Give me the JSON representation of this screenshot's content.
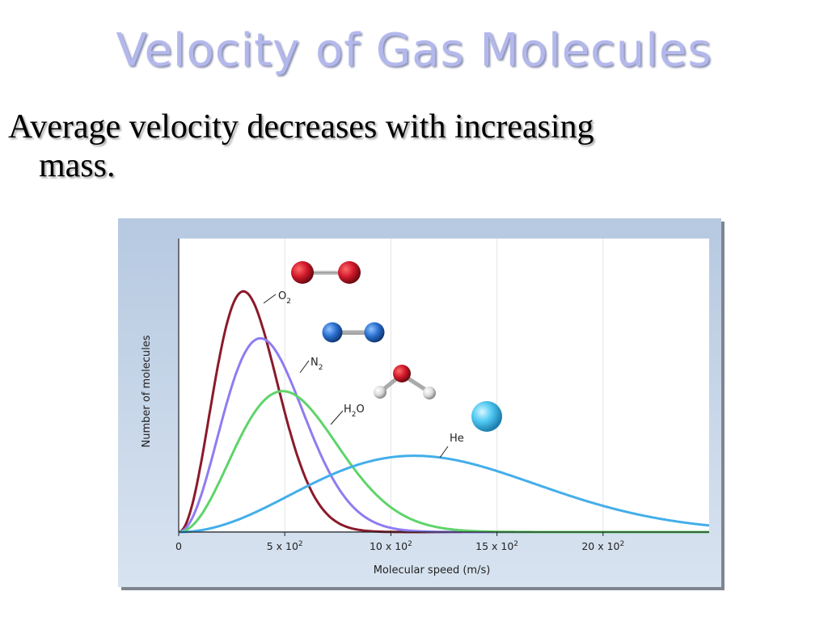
{
  "slide": {
    "title": "Velocity of Gas Molecules",
    "bullet_line1": "Average velocity decreases with increasing",
    "bullet_line2": "mass."
  },
  "chart_data": {
    "type": "line",
    "title": "",
    "xlabel": "Molecular speed (m/s)",
    "ylabel": "Number of molecules",
    "xlim": [
      0,
      2500
    ],
    "ylim": [
      0,
      1
    ],
    "x_ticks": [
      {
        "value": 0,
        "mantissa": "0",
        "exponent": ""
      },
      {
        "value": 500,
        "mantissa": "5 x 10",
        "exponent": "2"
      },
      {
        "value": 1000,
        "mantissa": "10 x 10",
        "exponent": "2"
      },
      {
        "value": 1500,
        "mantissa": "15 x 10",
        "exponent": "2"
      },
      {
        "value": 2000,
        "mantissa": "20 x 10",
        "exponent": "2"
      }
    ],
    "grid": "vertical",
    "colors": {
      "O2": "#8b1a2b",
      "N2": "#8f7cf0",
      "H2O": "#5ed46a",
      "He": "#43aeea"
    },
    "series": [
      {
        "name": "O2",
        "label_main": "O",
        "label_sub": "2",
        "peak_x": 305,
        "peak_y": 0.82
      },
      {
        "name": "N2",
        "label_main": "N",
        "label_sub": "2",
        "peak_x": 385,
        "peak_y": 0.66
      },
      {
        "name": "H2O",
        "label_main": "H",
        "label_sub": "2",
        "label_tail": "O",
        "peak_x": 490,
        "peak_y": 0.48
      },
      {
        "name": "He",
        "label_main": "He",
        "label_sub": "",
        "peak_x": 1110,
        "peak_y": 0.26
      }
    ],
    "molecule_icons": [
      "o2-molecule-icon",
      "n2-molecule-icon",
      "h2o-molecule-icon",
      "he-atom-icon"
    ]
  }
}
